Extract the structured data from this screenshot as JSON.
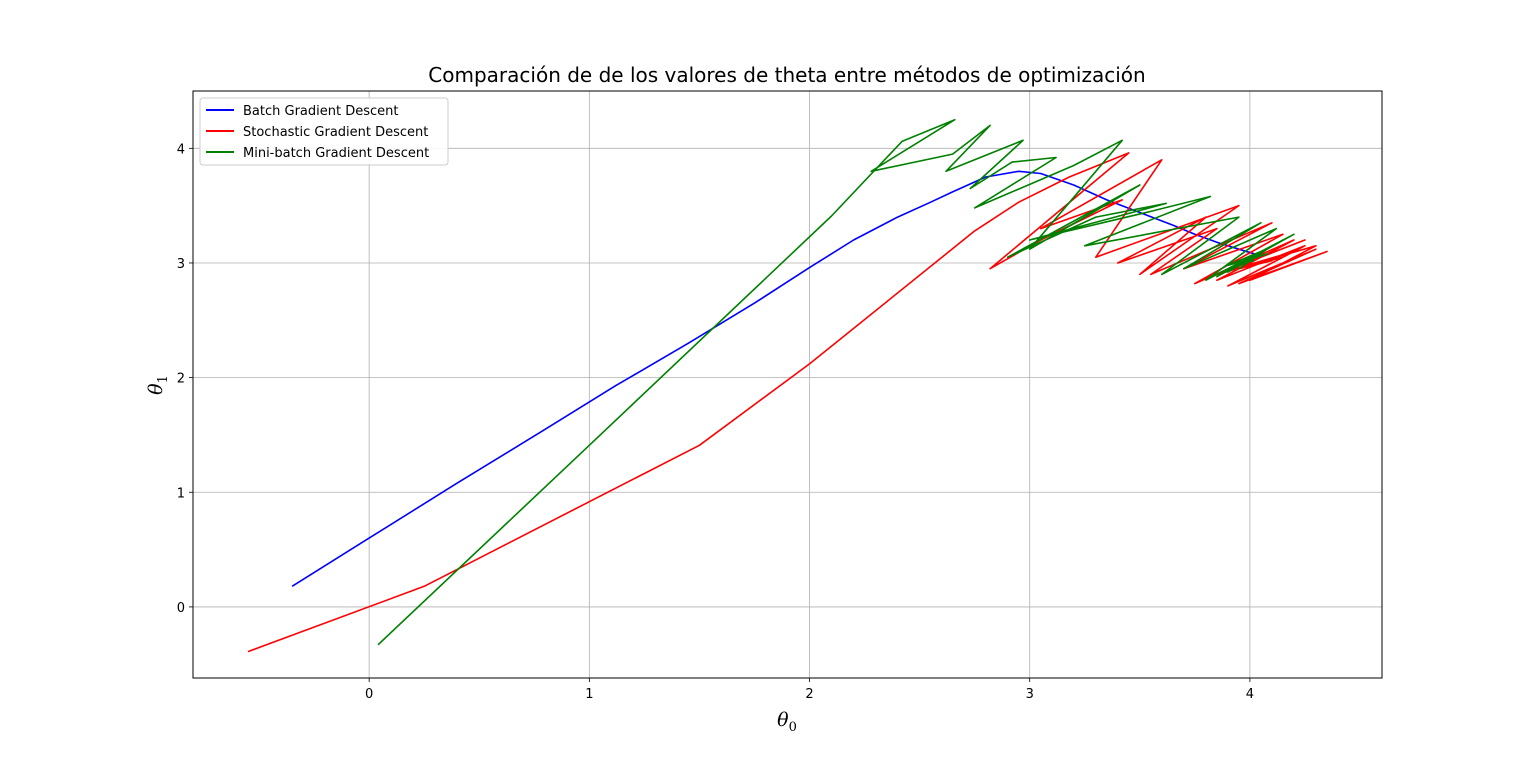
{
  "chart_data": {
    "type": "line",
    "title": "Comparación de de los valores de theta entre métodos de optimización",
    "xlabel": "θ",
    "xlabel_sub": "0",
    "ylabel": "θ",
    "ylabel_sub": "1",
    "xlim": [
      -0.8,
      4.6
    ],
    "ylim": [
      -0.62,
      4.5
    ],
    "xticks": [
      0,
      1,
      2,
      3,
      4
    ],
    "yticks": [
      0,
      1,
      2,
      3,
      4
    ],
    "grid": true,
    "legend_position": "upper-left",
    "series": [
      {
        "name": "Batch Gradient Descent",
        "color": "#0000ff",
        "x": [
          -0.35,
          0.0,
          0.4,
          0.8,
          1.12,
          1.45,
          1.75,
          2.0,
          2.2,
          2.4,
          2.55,
          2.65,
          2.8,
          2.95,
          3.05,
          3.2,
          3.35,
          3.5,
          3.65,
          3.75,
          3.85,
          3.95,
          4.02,
          4.05
        ],
        "y": [
          0.18,
          0.6,
          1.08,
          1.55,
          1.93,
          2.3,
          2.65,
          2.96,
          3.2,
          3.4,
          3.53,
          3.62,
          3.75,
          3.8,
          3.78,
          3.68,
          3.55,
          3.44,
          3.33,
          3.25,
          3.18,
          3.12,
          3.08,
          3.05
        ]
      },
      {
        "name": "Stochastic Gradient Descent",
        "color": "#ff0000",
        "x": [
          -0.55,
          0.25,
          1.5,
          2.0,
          2.75,
          2.95,
          3.18,
          3.45,
          2.82,
          3.05,
          3.42,
          3.05,
          3.6,
          3.3,
          3.95,
          3.5,
          3.8,
          3.4,
          3.85,
          3.55,
          4.1,
          3.7,
          4.15,
          3.75,
          4.2,
          3.85,
          4.25,
          3.9,
          4.3,
          3.95,
          4.35,
          4.0,
          4.3,
          3.85,
          4.25,
          3.82,
          4.2,
          3.88,
          4.15,
          3.95,
          4.1,
          4.0,
          4.05
        ],
        "y": [
          -0.39,
          0.18,
          1.41,
          2.12,
          3.28,
          3.53,
          3.75,
          3.96,
          2.95,
          3.2,
          3.55,
          3.3,
          3.9,
          3.05,
          3.5,
          2.9,
          3.4,
          3.0,
          3.3,
          2.9,
          3.35,
          2.95,
          3.25,
          2.82,
          3.2,
          2.85,
          3.15,
          2.8,
          3.12,
          2.82,
          3.1,
          2.85,
          3.15,
          2.9,
          3.2,
          2.88,
          3.1,
          2.92,
          3.05,
          2.95,
          3.02,
          2.98,
          3.0
        ]
      },
      {
        "name": "Mini-batch Gradient Descent",
        "color": "#008000",
        "x": [
          0.04,
          1.0,
          2.1,
          2.42,
          2.66,
          2.28,
          2.65,
          2.82,
          2.62,
          2.97,
          2.73,
          2.92,
          3.12,
          2.75,
          3.2,
          3.42,
          3.0,
          3.5,
          2.9,
          3.3,
          3.62,
          3.0,
          3.55,
          3.82,
          3.25,
          3.95,
          3.6,
          4.05,
          3.7,
          4.12,
          3.8,
          4.2,
          3.85,
          4.15,
          3.9,
          4.1,
          3.95,
          4.05,
          3.9,
          4.08,
          3.95,
          4.02
        ],
        "y": [
          -0.33,
          1.41,
          3.41,
          4.06,
          4.25,
          3.8,
          3.95,
          4.2,
          3.8,
          4.07,
          3.65,
          3.88,
          3.92,
          3.48,
          3.85,
          4.07,
          3.12,
          3.68,
          3.05,
          3.4,
          3.52,
          3.2,
          3.45,
          3.58,
          3.15,
          3.4,
          2.9,
          3.35,
          2.95,
          3.3,
          2.85,
          3.25,
          2.88,
          3.2,
          2.92,
          3.15,
          2.95,
          3.1,
          2.98,
          3.08,
          3.0,
          3.02
        ]
      }
    ]
  }
}
